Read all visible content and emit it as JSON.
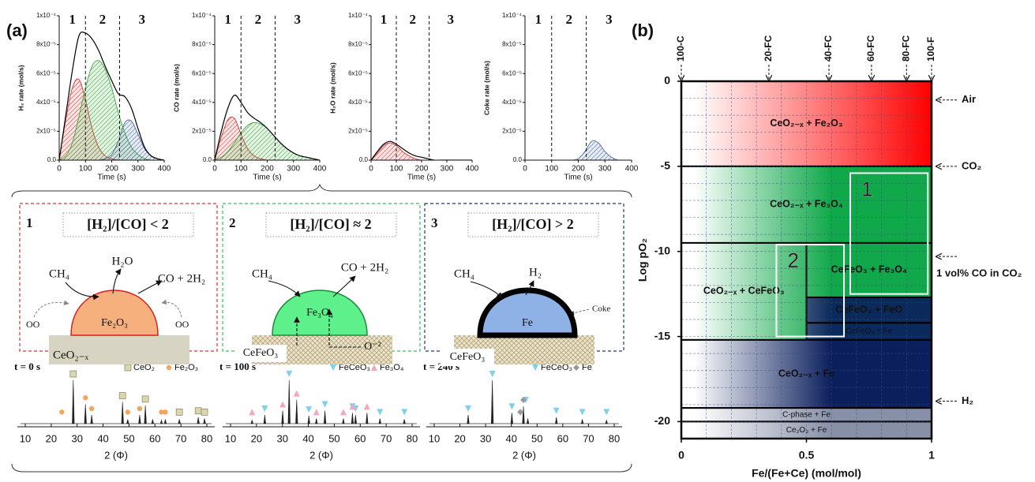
{
  "panel_labels": [
    "(a)",
    "(b)"
  ],
  "chart_data": [
    {
      "type": "area",
      "ylabel": "H₂ rate (mol/s)",
      "xlabel": "Time (s)",
      "x": [
        0,
        25,
        50,
        75,
        100,
        125,
        150,
        175,
        200,
        225,
        250,
        275,
        300,
        325,
        350,
        375,
        400
      ],
      "xlim": [
        0,
        400
      ],
      "xticks": [
        0,
        100,
        200,
        300,
        400
      ],
      "ylim": [
        0,
        0.0001
      ],
      "yticks": [
        {
          "value": 0,
          "label": "0.0"
        },
        {
          "value": 2e-05,
          "label": "2x10⁻⁵"
        },
        {
          "value": 4e-05,
          "label": "4x10⁻⁵"
        },
        {
          "value": 6e-05,
          "label": "6x10⁻⁵"
        },
        {
          "value": 8e-05,
          "label": "8x10⁻⁵"
        },
        {
          "value": 0.0001,
          "label": "1x10⁻⁴"
        }
      ],
      "dividers": [
        100,
        230
      ],
      "phases": [
        {
          "label": "1",
          "color": "#d62728"
        },
        {
          "label": "2",
          "color": "#22b14c"
        },
        {
          "label": "3",
          "color": "#1f3a7a"
        }
      ],
      "series": [
        {
          "color": "#d62728",
          "hatched": true,
          "values": [
            0,
            2.8e-05,
            5e-05,
            5.6e-05,
            4.2e-05,
            2.2e-05,
            9e-06,
            3e-06,
            1e-06,
            0,
            0,
            0,
            0,
            0,
            0,
            0,
            0
          ]
        },
        {
          "color": "#2ca02c",
          "hatched": true,
          "values": [
            0,
            3e-06,
            1.2e-05,
            3e-05,
            5e-05,
            6.5e-05,
            6.9e-05,
            6.3e-05,
            5e-05,
            3.3e-05,
            1.9e-05,
            9e-06,
            4e-06,
            1e-06,
            0,
            0,
            0
          ]
        },
        {
          "color": "#3b5b92",
          "hatched": true,
          "values": [
            0,
            0,
            0,
            0,
            0,
            0,
            0,
            1e-06,
            4e-06,
            1.3e-05,
            2.6e-05,
            2.7e-05,
            1.8e-05,
            8e-06,
            3e-06,
            1e-06,
            0
          ]
        },
        {
          "color": "#000000",
          "hatched": false,
          "values": [
            0,
            3.1e-05,
            6.2e-05,
            8.6e-05,
            8.8e-05,
            8.4e-05,
            7.6e-05,
            6.5e-05,
            5.5e-05,
            4.6e-05,
            4.4e-05,
            3.6e-05,
            2.2e-05,
            9e-06,
            3e-06,
            1e-06,
            0
          ]
        }
      ]
    },
    {
      "type": "area",
      "ylabel": "CO rate (mol/s)",
      "xlabel": "Time (s)",
      "x": [
        0,
        25,
        50,
        75,
        100,
        125,
        150,
        175,
        200,
        225,
        250,
        275,
        300,
        325,
        350,
        375,
        400
      ],
      "xlim": [
        0,
        400
      ],
      "xticks": [
        0,
        100,
        200,
        300,
        400
      ],
      "ylim": [
        0,
        0.0001
      ],
      "yticks": [
        {
          "value": 0,
          "label": "0.0"
        },
        {
          "value": 2e-05,
          "label": "2x10⁻⁵"
        },
        {
          "value": 4e-05,
          "label": "4x10⁻⁵"
        },
        {
          "value": 6e-05,
          "label": "6x10⁻⁵"
        },
        {
          "value": 8e-05,
          "label": "8x10⁻⁵"
        },
        {
          "value": 0.0001,
          "label": "1x10⁻⁴"
        }
      ],
      "dividers": [
        100,
        230
      ],
      "phases": [
        {
          "label": "1",
          "color": "#d62728"
        },
        {
          "label": "2",
          "color": "#22b14c"
        },
        {
          "label": "3",
          "color": "#1f3a7a"
        }
      ],
      "series": [
        {
          "color": "#d62728",
          "hatched": true,
          "values": [
            0,
            1.6e-05,
            2.8e-05,
            2.9e-05,
            1.8e-05,
            8e-06,
            3e-06,
            1e-06,
            0,
            0,
            0,
            0,
            0,
            0,
            0,
            0,
            0
          ]
        },
        {
          "color": "#2ca02c",
          "hatched": true,
          "values": [
            0,
            2e-06,
            6e-06,
            1.2e-05,
            1.9e-05,
            2.4e-05,
            2.6e-05,
            2.5e-05,
            2.2e-05,
            1.7e-05,
            1.2e-05,
            8e-06,
            5e-06,
            3e-06,
            2e-06,
            1e-06,
            0
          ]
        },
        {
          "color": "#000000",
          "hatched": false,
          "values": [
            0,
            2e-05,
            3.6e-05,
            4.5e-05,
            4e-05,
            3.3e-05,
            2.9e-05,
            2.6e-05,
            2.2e-05,
            1.7e-05,
            1.2e-05,
            8e-06,
            5e-06,
            3e-06,
            2e-06,
            1e-06,
            0
          ]
        }
      ]
    },
    {
      "type": "area",
      "ylabel": "H₂O rate (mol/s)",
      "xlabel": "Time (s)",
      "x": [
        0,
        25,
        50,
        75,
        100,
        125,
        150,
        175,
        200,
        225,
        250,
        275,
        300,
        325,
        350,
        375,
        400
      ],
      "xlim": [
        0,
        400
      ],
      "xticks": [
        0,
        100,
        200,
        300,
        400
      ],
      "ylim": [
        0,
        0.0001
      ],
      "yticks": [
        {
          "value": 0,
          "label": "0.0"
        },
        {
          "value": 2e-05,
          "label": "2x10⁻⁵"
        },
        {
          "value": 4e-05,
          "label": "4x10⁻⁵"
        },
        {
          "value": 6e-05,
          "label": "6x10⁻⁵"
        },
        {
          "value": 8e-05,
          "label": "8x10⁻⁵"
        },
        {
          "value": 0.0001,
          "label": "1x10⁻⁴"
        }
      ],
      "dividers": [
        100,
        230
      ],
      "phases": [
        {
          "label": "1",
          "color": "#d62728"
        },
        {
          "label": "2",
          "color": "#22b14c"
        },
        {
          "label": "3",
          "color": "#1f3a7a"
        }
      ],
      "series": [
        {
          "color": "#d62728",
          "hatched": true,
          "values": [
            0,
            5e-06,
            1e-05,
            1.2e-05,
            1e-05,
            6e-06,
            3e-06,
            1e-06,
            0,
            0,
            0,
            0,
            0,
            0,
            0,
            0,
            0
          ]
        },
        {
          "color": "#000000",
          "hatched": false,
          "values": [
            0,
            6e-06,
            1.1e-05,
            1.3e-05,
            1.1e-05,
            8e-06,
            5e-06,
            3e-06,
            2e-06,
            1e-06,
            0,
            0,
            0,
            0,
            0,
            0,
            0
          ]
        }
      ]
    },
    {
      "type": "area",
      "ylabel": "Coke rate (mol/s)",
      "xlabel": "Time (s)",
      "x": [
        0,
        25,
        50,
        75,
        100,
        125,
        150,
        175,
        200,
        225,
        250,
        275,
        300,
        325,
        350,
        375,
        400
      ],
      "xlim": [
        0,
        400
      ],
      "xticks": [
        0,
        100,
        200,
        300,
        400
      ],
      "ylim": [
        0,
        0.0001
      ],
      "yticks": [
        {
          "value": 0,
          "label": "0.0"
        },
        {
          "value": 2e-05,
          "label": "2x10⁻⁵"
        },
        {
          "value": 4e-05,
          "label": "4x10⁻⁵"
        },
        {
          "value": 6e-05,
          "label": "6x10⁻⁵"
        },
        {
          "value": 8e-05,
          "label": "8x10⁻⁵"
        },
        {
          "value": 0.0001,
          "label": "1x10⁻⁴"
        }
      ],
      "dividers": [
        100,
        230
      ],
      "phases": [
        {
          "label": "1",
          "color": "#d62728"
        },
        {
          "label": "2",
          "color": "#22b14c"
        },
        {
          "label": "3",
          "color": "#1f3a7a"
        }
      ],
      "series": [
        {
          "color": "#3b5b92",
          "hatched": true,
          "values": [
            0,
            0,
            0,
            0,
            0,
            0,
            0,
            0,
            1e-06,
            6e-06,
            1.3e-05,
            1.2e-05,
            6e-06,
            2e-06,
            0,
            0,
            0
          ]
        }
      ]
    },
    {
      "type": "stem",
      "time": "t = 0 s",
      "time_color": "#e02020",
      "xlabel": "2 (Φ)",
      "xlim": [
        10,
        80
      ],
      "xticks": [
        10,
        20,
        30,
        40,
        50,
        60,
        70,
        80
      ],
      "x": [
        28.5,
        33.2,
        35.6,
        47.5,
        49.5,
        54.1,
        56.3,
        59.1,
        62.5,
        64.0,
        69.4,
        76.7,
        79.1
      ],
      "values": [
        1.0,
        0.45,
        0.2,
        0.5,
        0.1,
        0.2,
        0.42,
        0.1,
        0.08,
        0.1,
        0.1,
        0.15,
        0.12
      ],
      "markers": [
        {
          "name": "CeO₂",
          "symbol": "square",
          "color": "#d9d6b0",
          "x": [
            28.5,
            47.5,
            56.3,
            69.4,
            76.7,
            79.1
          ]
        },
        {
          "name": "Fe₂O₃",
          "symbol": "circle",
          "color": "#f2a65a",
          "x": [
            24.1,
            33.2,
            35.6,
            49.5,
            54.1,
            62.5,
            64.0
          ]
        }
      ]
    },
    {
      "type": "stem",
      "time": "t = 100 s",
      "time_color": "#22b14c",
      "xlabel": "2 (Φ)",
      "xlim": [
        10,
        80
      ],
      "xticks": [
        10,
        20,
        30,
        40,
        50,
        60,
        70,
        80
      ],
      "x": [
        18.3,
        23.2,
        30.1,
        32.6,
        35.5,
        40.2,
        43.1,
        46.4,
        53.5,
        57.0,
        58.2,
        62.6,
        67.6,
        77.0
      ],
      "values": [
        0.08,
        0.2,
        0.3,
        1.0,
        0.55,
        0.18,
        0.12,
        0.3,
        0.12,
        0.25,
        0.2,
        0.25,
        0.12,
        0.1
      ],
      "markers": [
        {
          "name": "FeCeO₃",
          "symbol": "triangle-down",
          "color": "#7fd0ea",
          "x": [
            23.2,
            32.6,
            40.2,
            46.4,
            57.0,
            58.2,
            67.6,
            77.0
          ]
        },
        {
          "name": "Fe₃O₄",
          "symbol": "triangle-up",
          "color": "#f4a6bf",
          "x": [
            18.3,
            30.1,
            35.5,
            43.1,
            53.5,
            57.0,
            62.6
          ]
        }
      ]
    },
    {
      "type": "stem",
      "time": "t = 240 s",
      "time_color": "#1f3a7a",
      "xlabel": "2 (Φ)",
      "xlim": [
        10,
        80
      ],
      "xticks": [
        10,
        20,
        30,
        40,
        50,
        60,
        70,
        80
      ],
      "x": [
        23.2,
        32.6,
        40.2,
        44.7,
        46.4,
        57.5,
        67.6,
        77.0
      ],
      "values": [
        0.2,
        1.0,
        0.25,
        0.4,
        0.12,
        0.15,
        0.1,
        0.08
      ],
      "markers": [
        {
          "name": "FeCeO₃",
          "symbol": "triangle-down",
          "color": "#7fd0ea",
          "x": [
            23.2,
            32.6,
            40.2,
            45.6,
            57.5,
            67.6,
            77.0
          ]
        },
        {
          "name": "Fe",
          "symbol": "diamond",
          "color": "#9a9a9a",
          "x": [
            43.5,
            44.7
          ]
        }
      ]
    },
    {
      "type": "phase",
      "xlabel": "Fe/(Fe+Ce) (mol/mol)",
      "ylabel": "Log pO₂",
      "xlim": [
        0,
        1
      ],
      "xticks": [
        0,
        0.5,
        1
      ],
      "ylim": [
        -21,
        0
      ],
      "yticks": [
        0,
        -5,
        -10,
        -15,
        -20
      ],
      "grid": {
        "x_step": 0.1,
        "y_step": 1
      },
      "regions": [
        {
          "label": "CeO₂₋ₓ + Fe₂O₃",
          "x": [
            0,
            1
          ],
          "y": [
            0,
            -5
          ],
          "color": "#ff0000"
        },
        {
          "label": "CeO₂₋ₓ + Fe₃O₄",
          "x": [
            0,
            1
          ],
          "y": [
            -5,
            -9.5
          ],
          "color": "#10a84a"
        },
        {
          "label": "CeO₂₋ₓ + CeFeO₃",
          "x": [
            0,
            0.5
          ],
          "y": [
            -9.5,
            -15.2
          ],
          "color": "#10a84a"
        },
        {
          "label": "CeFeO₃ + Fe₃O₄",
          "x": [
            0.5,
            1
          ],
          "y": [
            -9.5,
            -12.7
          ],
          "color": "#10a84a"
        },
        {
          "label": "CeFeO₃ + FeO",
          "x": [
            0.5,
            1
          ],
          "y": [
            -12.7,
            -14.2
          ],
          "color": "#0b2a5c"
        },
        {
          "label": "CeFeO₃ + Fe",
          "x": [
            0.5,
            1
          ],
          "y": [
            -14.2,
            -15.2
          ],
          "color": "#0b2a5c"
        },
        {
          "label": "CeO₂₋ₓ + Fe",
          "x": [
            0,
            1
          ],
          "y": [
            -15.2,
            -19.2
          ],
          "color": "#0b1f5c"
        },
        {
          "label": "C-phase + Fe",
          "x": [
            0,
            1
          ],
          "y": [
            -19.2,
            -20
          ],
          "color": "#8890a8"
        },
        {
          "label": "Ce₂O₃ + Fe",
          "x": [
            0,
            1
          ],
          "y": [
            -20,
            -21
          ],
          "color": "#8890a8"
        }
      ],
      "boxes": [
        {
          "label": "1",
          "x": [
            0.675,
            0.985
          ],
          "y": [
            -5.4,
            -12.5
          ]
        },
        {
          "label": "2",
          "x": [
            0.38,
            0.65
          ],
          "y": [
            -9.6,
            -15
          ]
        }
      ],
      "compositions": [
        {
          "label": "100-C",
          "x": 0
        },
        {
          "label": "20-FC",
          "x": 0.35
        },
        {
          "label": "40-FC",
          "x": 0.59
        },
        {
          "label": "60-FC",
          "x": 0.76
        },
        {
          "label": "80-FC",
          "x": 0.9
        },
        {
          "label": "100-F",
          "x": 1
        }
      ],
      "conditions": [
        {
          "label": "Air",
          "y": -1.1
        },
        {
          "label": "CO₂",
          "y": -5
        },
        {
          "label": "1 vol% CO in CO₂",
          "y": -10.3
        },
        {
          "label": "H₂",
          "y": -18.8
        }
      ]
    }
  ],
  "schematic": {
    "panels": [
      {
        "number": "1",
        "ratio": "[H₂]/[CO]  < 2",
        "color": "#e03030",
        "reactant": "CH₄",
        "products": [
          "H₂O",
          "CO + 2H₂"
        ],
        "particle": "Fe₂O₃",
        "support": "CeO₂₋ₓ",
        "oxygen": [
          "OO",
          "OO"
        ]
      },
      {
        "number": "2",
        "ratio": "[H₂]/[CO]  ≈ 2",
        "color": "#2ec45a",
        "reactant": "CH₄",
        "products": [
          "CO + 2H₂"
        ],
        "particle": "Fe₃O₄",
        "support": "CeFeO₃",
        "oxygen": [
          "O⁻²"
        ]
      },
      {
        "number": "3",
        "ratio": "[H₂]/[CO]  > 2",
        "color": "#1f3a7a",
        "reactant": "CH₄",
        "products": [
          "H₂"
        ],
        "particle": "Fe",
        "support": "CeFeO₃",
        "coke": "Coke"
      }
    ]
  }
}
